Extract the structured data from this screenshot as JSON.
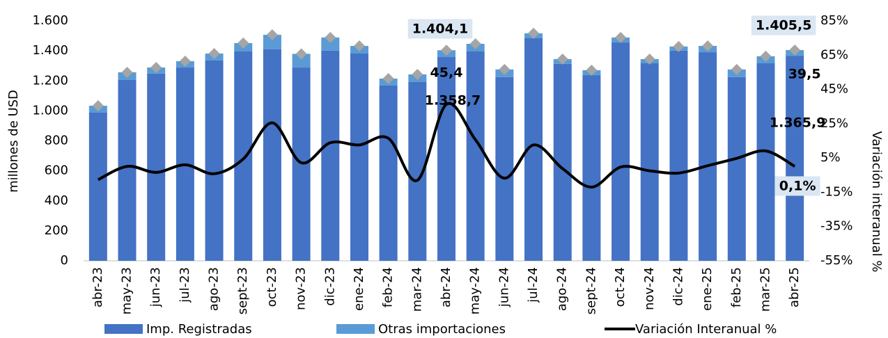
{
  "chart_data": {
    "type": "bar",
    "categories": [
      "abr-23",
      "may-23",
      "jun-23",
      "jul-23",
      "ago-23",
      "sept-23",
      "oct-23",
      "nov-23",
      "dic-23",
      "ene-24",
      "feb-24",
      "mar-24",
      "abr-24",
      "may-24",
      "jun-24",
      "jul-24",
      "ago-24",
      "sept-24",
      "oct-24",
      "nov-24",
      "dic-24",
      "ene-25",
      "feb-25",
      "mar-25",
      "abr-25"
    ],
    "ylabel": "millones de  USD",
    "y2label": "Variación  interanual %",
    "ylim": [
      0,
      1600
    ],
    "yticks": [
      0,
      200,
      400,
      600,
      800,
      {
        "value": 1000,
        "label": "1.000"
      },
      {
        "value": 1200,
        "label": "1.200"
      },
      {
        "value": 1400,
        "label": "1.400"
      },
      {
        "value": 1600,
        "label": "1.600"
      }
    ],
    "y2lim": [
      -55,
      85
    ],
    "y2ticks": [
      {
        "value": -55,
        "label": "-55%"
      },
      {
        "value": -35,
        "label": "-35%"
      },
      {
        "value": -15,
        "label": "-15%"
      },
      {
        "value": 5,
        "label": "5%"
      },
      {
        "value": 25,
        "label": "25%"
      },
      {
        "value": 45,
        "label": "45%"
      },
      {
        "value": 65,
        "label": "65%"
      },
      {
        "value": 85,
        "label": "85%"
      }
    ],
    "series": [
      {
        "name": "Imp. Registradas",
        "color": "#4472c4",
        "stacked": true,
        "values": [
          988,
          1206,
          1248,
          1289,
          1336,
          1396,
          1410,
          1289,
          1401,
          1382,
          1169,
          1192,
          1358.7,
          1396,
          1225,
          1484,
          1313,
          1238,
          1456,
          1317,
          1401,
          1391,
          1225,
          1317,
          1365.9
        ],
        "value_labels": [
          null,
          null,
          null,
          null,
          null,
          null,
          null,
          null,
          null,
          null,
          null,
          null,
          "1.358,7",
          null,
          null,
          null,
          null,
          null,
          null,
          null,
          null,
          null,
          null,
          null,
          "1.365,9"
        ]
      },
      {
        "name": "Otras importaciones",
        "color": "#5b9bd5",
        "stacked": true,
        "values": [
          46,
          51,
          41,
          42,
          46,
          56,
          97,
          91,
          88,
          51,
          46,
          51,
          45.4,
          51,
          51,
          33,
          32,
          33,
          33,
          28,
          28,
          42,
          51,
          47,
          39.5
        ],
        "value_labels": [
          null,
          null,
          null,
          null,
          null,
          null,
          null,
          null,
          null,
          null,
          null,
          null,
          "45,4",
          null,
          null,
          null,
          null,
          null,
          null,
          null,
          null,
          null,
          null,
          null,
          "39,5"
        ]
      },
      {
        "name": "Variación Interanual %",
        "color": "#000000",
        "type": "line",
        "axis": "y2",
        "values": [
          -7.7,
          0.1,
          -3.4,
          1,
          -4.2,
          4.4,
          25.5,
          2.2,
          13.9,
          12.6,
          16.5,
          -8,
          36.3,
          15.6,
          -6.8,
          12.6,
          -1.2,
          -12,
          -0.3,
          -2.5,
          -3.8,
          0.5,
          4.8,
          9.1,
          0.1
        ],
        "value_labels": [
          null,
          null,
          null,
          null,
          null,
          null,
          null,
          null,
          null,
          null,
          null,
          null,
          null,
          null,
          null,
          null,
          null,
          null,
          null,
          null,
          null,
          null,
          null,
          null,
          "0,1%"
        ]
      }
    ],
    "totals": {
      "color": "#a5a5a5",
      "values": [
        1034,
        1257,
        1289,
        1331,
        1382,
        1452,
        1507,
        1380,
        1489,
        1433,
        1215,
        1243,
        1404.1,
        1447,
        1276,
        1517,
        1345,
        1271,
        1489,
        1345,
        1429,
        1433,
        1276,
        1364,
        1405.5
      ],
      "value_labels": [
        null,
        null,
        null,
        null,
        null,
        null,
        null,
        null,
        null,
        null,
        null,
        null,
        "1.404,1",
        null,
        null,
        null,
        null,
        null,
        null,
        null,
        null,
        null,
        null,
        null,
        "1.405,5"
      ]
    }
  }
}
